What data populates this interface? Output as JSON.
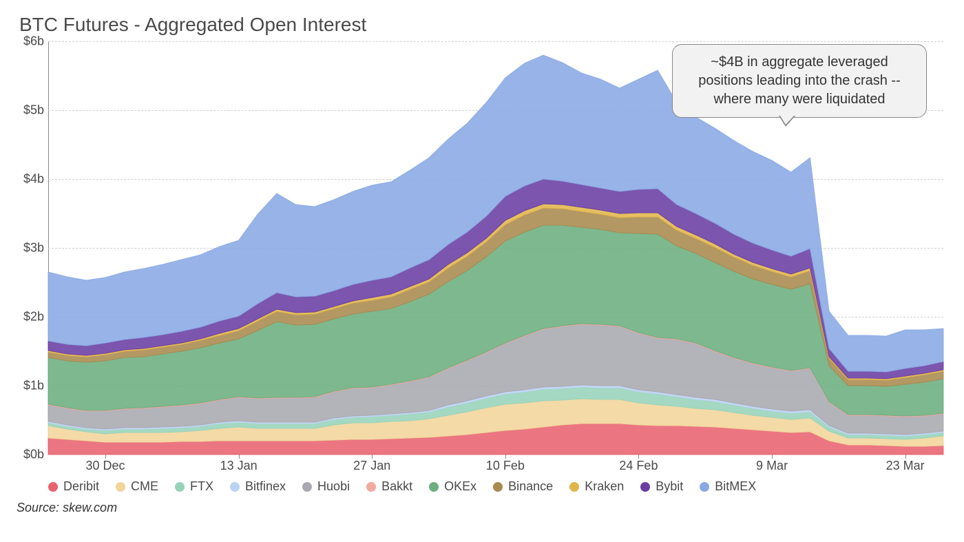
{
  "chart": {
    "type": "stacked-area",
    "title": "BTC Futures - Aggregated Open Interest",
    "title_fontsize": 28,
    "title_color": "#4a4a4a",
    "source_label": "Source: skew.com",
    "background_color": "#ffffff",
    "grid_color": "#d0d0d0",
    "axis_color": "#888888",
    "tick_label_color": "#4a4a4a",
    "tick_label_fontsize": 18,
    "y_axis": {
      "min": 0,
      "max": 6,
      "tick_step": 1,
      "tick_labels": [
        "$0b",
        "$1b",
        "$2b",
        "$3b",
        "$4b",
        "$5b",
        "$6b"
      ],
      "unit": "billions_usd"
    },
    "x_axis": {
      "tick_indices": [
        3,
        10,
        17,
        24,
        31,
        38,
        45
      ],
      "tick_labels": [
        "30 Dec",
        "13 Jan",
        "27 Jan",
        "10 Feb",
        "24 Feb",
        "9 Mar",
        "23 Mar"
      ],
      "n_points": 48
    },
    "callout": {
      "text": "~$4B in aggregate leveraged positions leading into the crash -- where many were liquidated",
      "background_color": "#f2f2f2",
      "border_color": "#888888",
      "text_color": "#333333",
      "fontsize": 20
    },
    "legend": {
      "fontsize": 18,
      "swatch_shape": "circle",
      "items": [
        {
          "key": "deribit",
          "label": "Deribit",
          "color": "#e8636f"
        },
        {
          "key": "cme",
          "label": "CME",
          "color": "#f2d59b"
        },
        {
          "key": "ftx",
          "label": "FTX",
          "color": "#97d3b9"
        },
        {
          "key": "bitfinex",
          "label": "Bitfinex",
          "color": "#bcd3f2"
        },
        {
          "key": "huobi",
          "label": "Huobi",
          "color": "#a9a9b1"
        },
        {
          "key": "bakkt",
          "label": "Bakkt",
          "color": "#f4a9a0"
        },
        {
          "key": "okex",
          "label": "OKEx",
          "color": "#6cae7f"
        },
        {
          "key": "binance",
          "label": "Binance",
          "color": "#a98a4f"
        },
        {
          "key": "kraken",
          "label": "Kraken",
          "color": "#e1b64a"
        },
        {
          "key": "bybit",
          "label": "Bybit",
          "color": "#6a3da3"
        },
        {
          "key": "bitmex",
          "label": "BitMEX",
          "color": "#8aa9e4"
        }
      ]
    },
    "series_stack_order": [
      "deribit",
      "cme",
      "ftx",
      "bitfinex",
      "huobi",
      "bakkt",
      "okex",
      "binance",
      "kraken",
      "bybit",
      "bitmex"
    ],
    "series": {
      "deribit": [
        0.24,
        0.22,
        0.2,
        0.18,
        0.18,
        0.18,
        0.18,
        0.19,
        0.19,
        0.2,
        0.2,
        0.2,
        0.2,
        0.2,
        0.2,
        0.21,
        0.22,
        0.22,
        0.23,
        0.24,
        0.25,
        0.27,
        0.29,
        0.32,
        0.35,
        0.37,
        0.4,
        0.43,
        0.45,
        0.45,
        0.45,
        0.43,
        0.42,
        0.42,
        0.41,
        0.4,
        0.38,
        0.36,
        0.34,
        0.32,
        0.33,
        0.2,
        0.14,
        0.14,
        0.13,
        0.12,
        0.12,
        0.13
      ],
      "cme": [
        0.18,
        0.15,
        0.13,
        0.12,
        0.14,
        0.14,
        0.14,
        0.14,
        0.16,
        0.18,
        0.2,
        0.18,
        0.18,
        0.18,
        0.18,
        0.22,
        0.24,
        0.24,
        0.25,
        0.25,
        0.27,
        0.3,
        0.33,
        0.36,
        0.38,
        0.38,
        0.38,
        0.36,
        0.36,
        0.35,
        0.35,
        0.32,
        0.3,
        0.28,
        0.26,
        0.25,
        0.23,
        0.21,
        0.2,
        0.19,
        0.2,
        0.14,
        0.1,
        0.1,
        0.1,
        0.1,
        0.12,
        0.14
      ],
      "ftx": [
        0.04,
        0.04,
        0.04,
        0.05,
        0.05,
        0.05,
        0.06,
        0.06,
        0.06,
        0.07,
        0.07,
        0.07,
        0.07,
        0.07,
        0.07,
        0.08,
        0.08,
        0.09,
        0.09,
        0.1,
        0.1,
        0.12,
        0.13,
        0.14,
        0.15,
        0.16,
        0.17,
        0.17,
        0.17,
        0.17,
        0.17,
        0.16,
        0.16,
        0.14,
        0.13,
        0.12,
        0.11,
        0.1,
        0.09,
        0.09,
        0.09,
        0.06,
        0.05,
        0.05,
        0.05,
        0.05,
        0.05,
        0.05
      ],
      "bitfinex": [
        0.02,
        0.02,
        0.02,
        0.02,
        0.02,
        0.02,
        0.02,
        0.02,
        0.02,
        0.02,
        0.02,
        0.02,
        0.02,
        0.02,
        0.02,
        0.02,
        0.02,
        0.02,
        0.02,
        0.02,
        0.02,
        0.03,
        0.03,
        0.03,
        0.03,
        0.03,
        0.03,
        0.03,
        0.03,
        0.03,
        0.03,
        0.03,
        0.03,
        0.03,
        0.03,
        0.03,
        0.03,
        0.03,
        0.03,
        0.03,
        0.03,
        0.02,
        0.02,
        0.02,
        0.02,
        0.02,
        0.02,
        0.02
      ],
      "huobi": [
        0.24,
        0.24,
        0.24,
        0.26,
        0.27,
        0.28,
        0.29,
        0.3,
        0.31,
        0.32,
        0.34,
        0.34,
        0.35,
        0.35,
        0.36,
        0.38,
        0.4,
        0.4,
        0.42,
        0.45,
        0.48,
        0.53,
        0.58,
        0.63,
        0.7,
        0.78,
        0.84,
        0.87,
        0.88,
        0.88,
        0.86,
        0.82,
        0.78,
        0.8,
        0.78,
        0.7,
        0.65,
        0.62,
        0.6,
        0.58,
        0.6,
        0.34,
        0.26,
        0.26,
        0.26,
        0.26,
        0.25,
        0.25
      ],
      "bakkt": [
        0.01,
        0.01,
        0.01,
        0.01,
        0.01,
        0.01,
        0.01,
        0.01,
        0.01,
        0.01,
        0.01,
        0.01,
        0.01,
        0.01,
        0.01,
        0.01,
        0.01,
        0.01,
        0.01,
        0.01,
        0.01,
        0.01,
        0.01,
        0.01,
        0.01,
        0.01,
        0.01,
        0.01,
        0.01,
        0.01,
        0.01,
        0.01,
        0.01,
        0.01,
        0.01,
        0.01,
        0.01,
        0.01,
        0.01,
        0.01,
        0.01,
        0.01,
        0.01,
        0.01,
        0.01,
        0.01,
        0.01,
        0.01
      ],
      "okex": [
        0.68,
        0.68,
        0.7,
        0.72,
        0.74,
        0.74,
        0.76,
        0.78,
        0.8,
        0.82,
        0.84,
        0.98,
        1.1,
        1.05,
        1.05,
        1.05,
        1.07,
        1.1,
        1.1,
        1.15,
        1.2,
        1.25,
        1.3,
        1.38,
        1.48,
        1.5,
        1.5,
        1.46,
        1.4,
        1.38,
        1.35,
        1.44,
        1.5,
        1.35,
        1.3,
        1.28,
        1.25,
        1.22,
        1.2,
        1.18,
        1.22,
        0.52,
        0.42,
        0.42,
        0.42,
        0.46,
        0.48,
        0.5
      ],
      "binance": [
        0.08,
        0.08,
        0.08,
        0.09,
        0.09,
        0.1,
        0.1,
        0.1,
        0.11,
        0.11,
        0.12,
        0.14,
        0.15,
        0.15,
        0.15,
        0.15,
        0.16,
        0.16,
        0.17,
        0.18,
        0.18,
        0.2,
        0.21,
        0.22,
        0.24,
        0.25,
        0.25,
        0.24,
        0.23,
        0.22,
        0.22,
        0.24,
        0.25,
        0.23,
        0.22,
        0.22,
        0.21,
        0.2,
        0.19,
        0.18,
        0.19,
        0.11,
        0.09,
        0.09,
        0.09,
        0.1,
        0.11,
        0.11
      ],
      "kraken": [
        0.02,
        0.02,
        0.02,
        0.02,
        0.02,
        0.02,
        0.02,
        0.02,
        0.02,
        0.03,
        0.03,
        0.03,
        0.03,
        0.03,
        0.03,
        0.03,
        0.03,
        0.04,
        0.04,
        0.04,
        0.04,
        0.05,
        0.05,
        0.05,
        0.06,
        0.06,
        0.06,
        0.06,
        0.06,
        0.06,
        0.06,
        0.06,
        0.06,
        0.05,
        0.05,
        0.05,
        0.04,
        0.04,
        0.04,
        0.04,
        0.04,
        0.02,
        0.02,
        0.02,
        0.02,
        0.02,
        0.02,
        0.02
      ],
      "bybit": [
        0.14,
        0.14,
        0.14,
        0.15,
        0.15,
        0.16,
        0.16,
        0.17,
        0.17,
        0.18,
        0.18,
        0.22,
        0.24,
        0.23,
        0.23,
        0.23,
        0.24,
        0.25,
        0.25,
        0.27,
        0.28,
        0.29,
        0.3,
        0.32,
        0.35,
        0.36,
        0.36,
        0.34,
        0.33,
        0.32,
        0.32,
        0.34,
        0.35,
        0.32,
        0.31,
        0.3,
        0.29,
        0.28,
        0.27,
        0.26,
        0.28,
        0.12,
        0.1,
        0.1,
        0.1,
        0.11,
        0.11,
        0.12
      ],
      "bitmex": [
        1.0,
        0.98,
        0.95,
        0.95,
        0.98,
        1.0,
        1.02,
        1.04,
        1.05,
        1.08,
        1.1,
        1.3,
        1.44,
        1.34,
        1.3,
        1.32,
        1.35,
        1.38,
        1.38,
        1.42,
        1.48,
        1.53,
        1.58,
        1.65,
        1.72,
        1.78,
        1.8,
        1.72,
        1.62,
        1.58,
        1.5,
        1.6,
        1.72,
        1.48,
        1.4,
        1.38,
        1.36,
        1.33,
        1.3,
        1.22,
        1.32,
        0.54,
        0.52,
        0.52,
        0.52,
        0.56,
        0.52,
        0.48
      ]
    },
    "colors": {
      "deribit": "#e8636f",
      "cme": "#f2d59b",
      "ftx": "#97d3b9",
      "bitfinex": "#bcd3f2",
      "huobi": "#a9a9b1",
      "bakkt": "#f4a9a0",
      "okex": "#6cae7f",
      "binance": "#a98a4f",
      "kraken": "#e1b64a",
      "bybit": "#6a3da3",
      "bitmex": "#8aa9e4"
    },
    "series_opacity": 0.88
  }
}
